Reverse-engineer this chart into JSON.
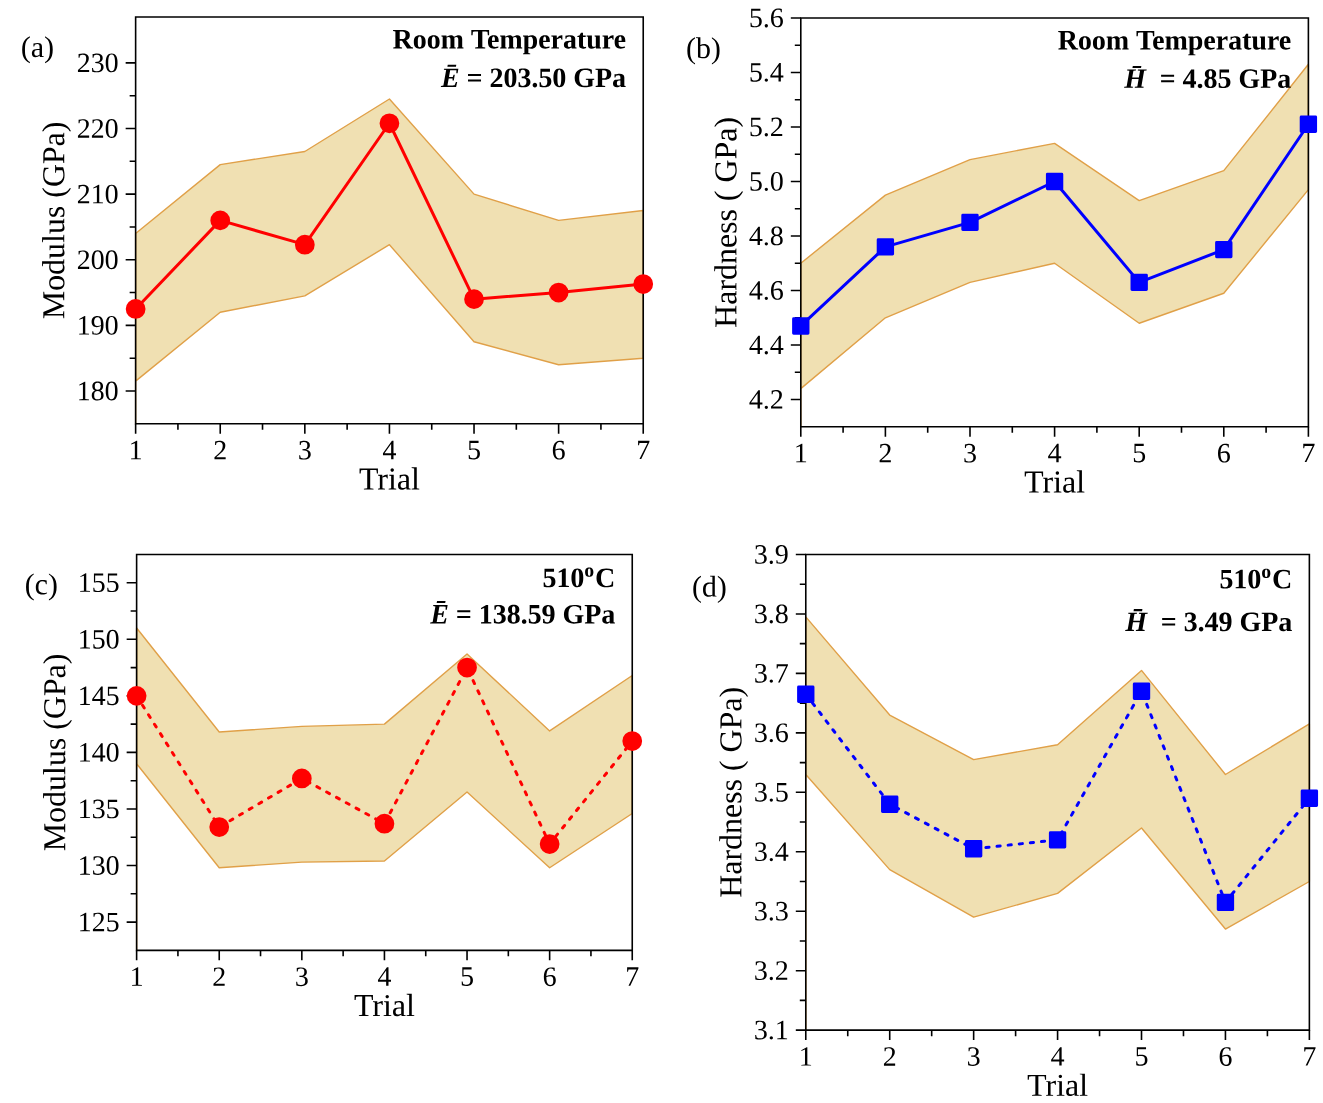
{
  "chart_data": [
    {
      "type": "line",
      "annotations": [
        "(a)",
        "Room Temperature",
        "*Ē* = 203.50 GPa"
      ],
      "xlabel": "Trial",
      "ylabel": "Modulus (GPa)",
      "x": [
        1,
        2,
        3,
        4,
        5,
        6,
        7
      ],
      "xlim": [
        1,
        7
      ],
      "xticks": [
        1,
        2,
        3,
        4,
        5,
        6,
        7
      ],
      "ylim": [
        175,
        237
      ],
      "yticks": [
        180,
        190,
        200,
        210,
        220,
        230
      ],
      "marker": "circle",
      "line_style": "solid",
      "series": [
        {
          "color": "#ff0000",
          "values": [
            192.5,
            206,
            202.3,
            220.8,
            194,
            195,
            196.3
          ],
          "lower": [
            181.5,
            192,
            194.5,
            202.3,
            187.5,
            184,
            185
          ],
          "upper": [
            204,
            214.5,
            216.5,
            224.5,
            210,
            206,
            207.5
          ]
        }
      ]
    },
    {
      "type": "line",
      "annotations": [
        "(b)",
        "Room Temperature",
        "*H̄* = 4.85 GPa"
      ],
      "xlabel": "Trial",
      "ylabel": "Hardness ( GPa)",
      "x": [
        1,
        2,
        3,
        4,
        5,
        6,
        7
      ],
      "xlim": [
        1,
        7
      ],
      "xticks": [
        1,
        2,
        3,
        4,
        5,
        6,
        7
      ],
      "ylim": [
        4.1,
        5.6
      ],
      "yticks": [
        4.2,
        4.4,
        4.6,
        4.8,
        {
          "value": 5.0,
          "label": "5.0"
        },
        5.2,
        5.4,
        5.6
      ],
      "marker": "square",
      "line_style": "solid",
      "series": [
        {
          "color": "#0000ff",
          "values": [
            4.47,
            4.76,
            4.85,
            5.0,
            4.63,
            4.75,
            5.21
          ],
          "lower": [
            4.24,
            4.5,
            4.63,
            4.7,
            4.48,
            4.59,
            4.97
          ],
          "upper": [
            4.7,
            4.95,
            5.08,
            5.14,
            4.93,
            5.04,
            5.43
          ]
        }
      ]
    },
    {
      "type": "line",
      "annotations": [
        "(c)",
        "510$^{o}$C",
        "*Ē* = 138.59 GPa"
      ],
      "xlabel": "Trial",
      "ylabel": "Modulus (GPa)",
      "x": [
        1,
        2,
        3,
        4,
        5,
        6,
        7
      ],
      "xlim": [
        1,
        7
      ],
      "xticks": [
        1,
        2,
        3,
        4,
        5,
        6,
        7
      ],
      "ylim": [
        122.5,
        157.5
      ],
      "yticks": [
        125,
        130,
        135,
        140,
        145,
        150,
        155
      ],
      "marker": "circle",
      "line_style": "dotted",
      "series": [
        {
          "color": "#ff0000",
          "values": [
            145,
            133.4,
            137.7,
            133.7,
            147.5,
            131.9,
            141
          ],
          "lower": [
            139,
            129.8,
            130.3,
            130.4,
            136.5,
            129.8,
            134.6
          ],
          "upper": [
            151,
            141.8,
            142.3,
            142.5,
            148.7,
            141.9,
            146.8
          ]
        }
      ]
    },
    {
      "type": "line",
      "annotations": [
        "(d)",
        "510$^{o}$C",
        "*H̄* = 3.49 GPa"
      ],
      "xlabel": "Trial",
      "ylabel": "Hardness ( GPa)",
      "x": [
        1,
        2,
        3,
        4,
        5,
        6,
        7
      ],
      "xlim": [
        1,
        7
      ],
      "xticks": [
        1,
        2,
        3,
        4,
        5,
        6,
        7
      ],
      "ylim": [
        3.1,
        3.9
      ],
      "yticks": [
        3.1,
        3.2,
        3.3,
        3.4,
        3.5,
        3.6,
        3.7,
        3.8,
        3.9
      ],
      "marker": "square",
      "line_style": "dotted",
      "series": [
        {
          "color": "#0000ff",
          "values": [
            3.665,
            3.48,
            3.405,
            3.42,
            3.67,
            3.315,
            3.49
          ],
          "lower": [
            3.53,
            3.37,
            3.29,
            3.33,
            3.44,
            3.27,
            3.35
          ],
          "upper": [
            3.795,
            3.63,
            3.555,
            3.58,
            3.705,
            3.53,
            3.615
          ]
        }
      ]
    }
  ]
}
